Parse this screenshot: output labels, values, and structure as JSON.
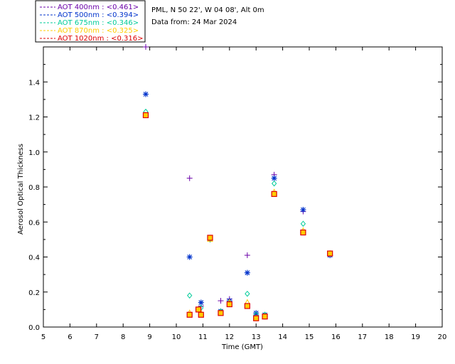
{
  "header": {
    "location": "PML, N 50 22', W 04 08', Alt 0m",
    "date": "Data from: 24 Mar 2024"
  },
  "chart_data": {
    "type": "scatter",
    "xlabel": "Time (GMT)",
    "ylabel": "Aerosol Optical Thickness",
    "xlim": [
      5,
      20
    ],
    "ylim": [
      0,
      1.6
    ],
    "xticks": [
      5,
      6,
      7,
      8,
      9,
      10,
      11,
      12,
      13,
      14,
      15,
      16,
      17,
      18,
      19,
      20
    ],
    "yticks": [
      0.0,
      0.2,
      0.4,
      0.6,
      0.8,
      1.0,
      1.2,
      1.4
    ],
    "ytick_labels": [
      "0.0",
      "0.2",
      "0.4",
      "0.6",
      "0.8",
      "1.0",
      "1.2",
      "1.4"
    ],
    "grid": false,
    "legend_position": "top-left, above plot",
    "series": [
      {
        "name": "AOT  400nm : <0.461>",
        "color": "#6a00a8",
        "marker": "plus",
        "x": [
          8.85,
          10.5,
          10.83,
          10.93,
          11.27,
          11.67,
          12.0,
          12.67,
          13.0,
          13.33,
          13.68,
          14.77,
          15.78
        ],
        "y": [
          1.6,
          0.85,
          0.1,
          0.12,
          0.5,
          0.15,
          0.16,
          0.41,
          0.07,
          0.06,
          0.87,
          0.66,
          0.41
        ]
      },
      {
        "name": "AOT  500nm : <0.394>",
        "color": "#0033cc",
        "marker": "asterisk",
        "x": [
          8.85,
          10.5,
          10.83,
          10.93,
          11.27,
          11.67,
          12.0,
          12.67,
          13.0,
          13.33,
          13.68,
          14.77,
          15.78
        ],
        "y": [
          1.33,
          0.4,
          0.1,
          0.14,
          0.51,
          0.09,
          0.15,
          0.31,
          0.08,
          0.07,
          0.85,
          0.67,
          0.41
        ]
      },
      {
        "name": "AOT  675nm : <0.346>",
        "color": "#00cc99",
        "marker": "diamond",
        "x": [
          8.85,
          10.5,
          10.83,
          10.93,
          11.27,
          11.67,
          12.0,
          12.67,
          13.0,
          13.33,
          13.68,
          14.77,
          15.78
        ],
        "y": [
          1.23,
          0.18,
          0.1,
          0.11,
          0.5,
          0.09,
          0.14,
          0.19,
          0.07,
          0.07,
          0.82,
          0.59,
          0.42
        ]
      },
      {
        "name": "AOT  870nm : <0.325>",
        "color": "#ffcc00",
        "marker": "triangle",
        "x": [
          8.85,
          10.5,
          10.83,
          10.93,
          11.27,
          11.67,
          12.0,
          12.67,
          13.0,
          13.33,
          13.68,
          14.77,
          15.78
        ],
        "y": [
          1.21,
          0.08,
          0.1,
          0.08,
          0.5,
          0.08,
          0.14,
          0.14,
          0.05,
          0.06,
          0.77,
          0.55,
          0.42
        ]
      },
      {
        "name": "AOT 1020nm : <0.316>",
        "color": "#dd0000",
        "marker": "square",
        "x": [
          8.85,
          10.5,
          10.83,
          10.93,
          11.27,
          11.67,
          12.0,
          12.67,
          13.0,
          13.33,
          13.68,
          14.77,
          15.78
        ],
        "y": [
          1.21,
          0.07,
          0.1,
          0.07,
          0.51,
          0.08,
          0.13,
          0.12,
          0.05,
          0.06,
          0.76,
          0.54,
          0.42
        ]
      }
    ]
  }
}
